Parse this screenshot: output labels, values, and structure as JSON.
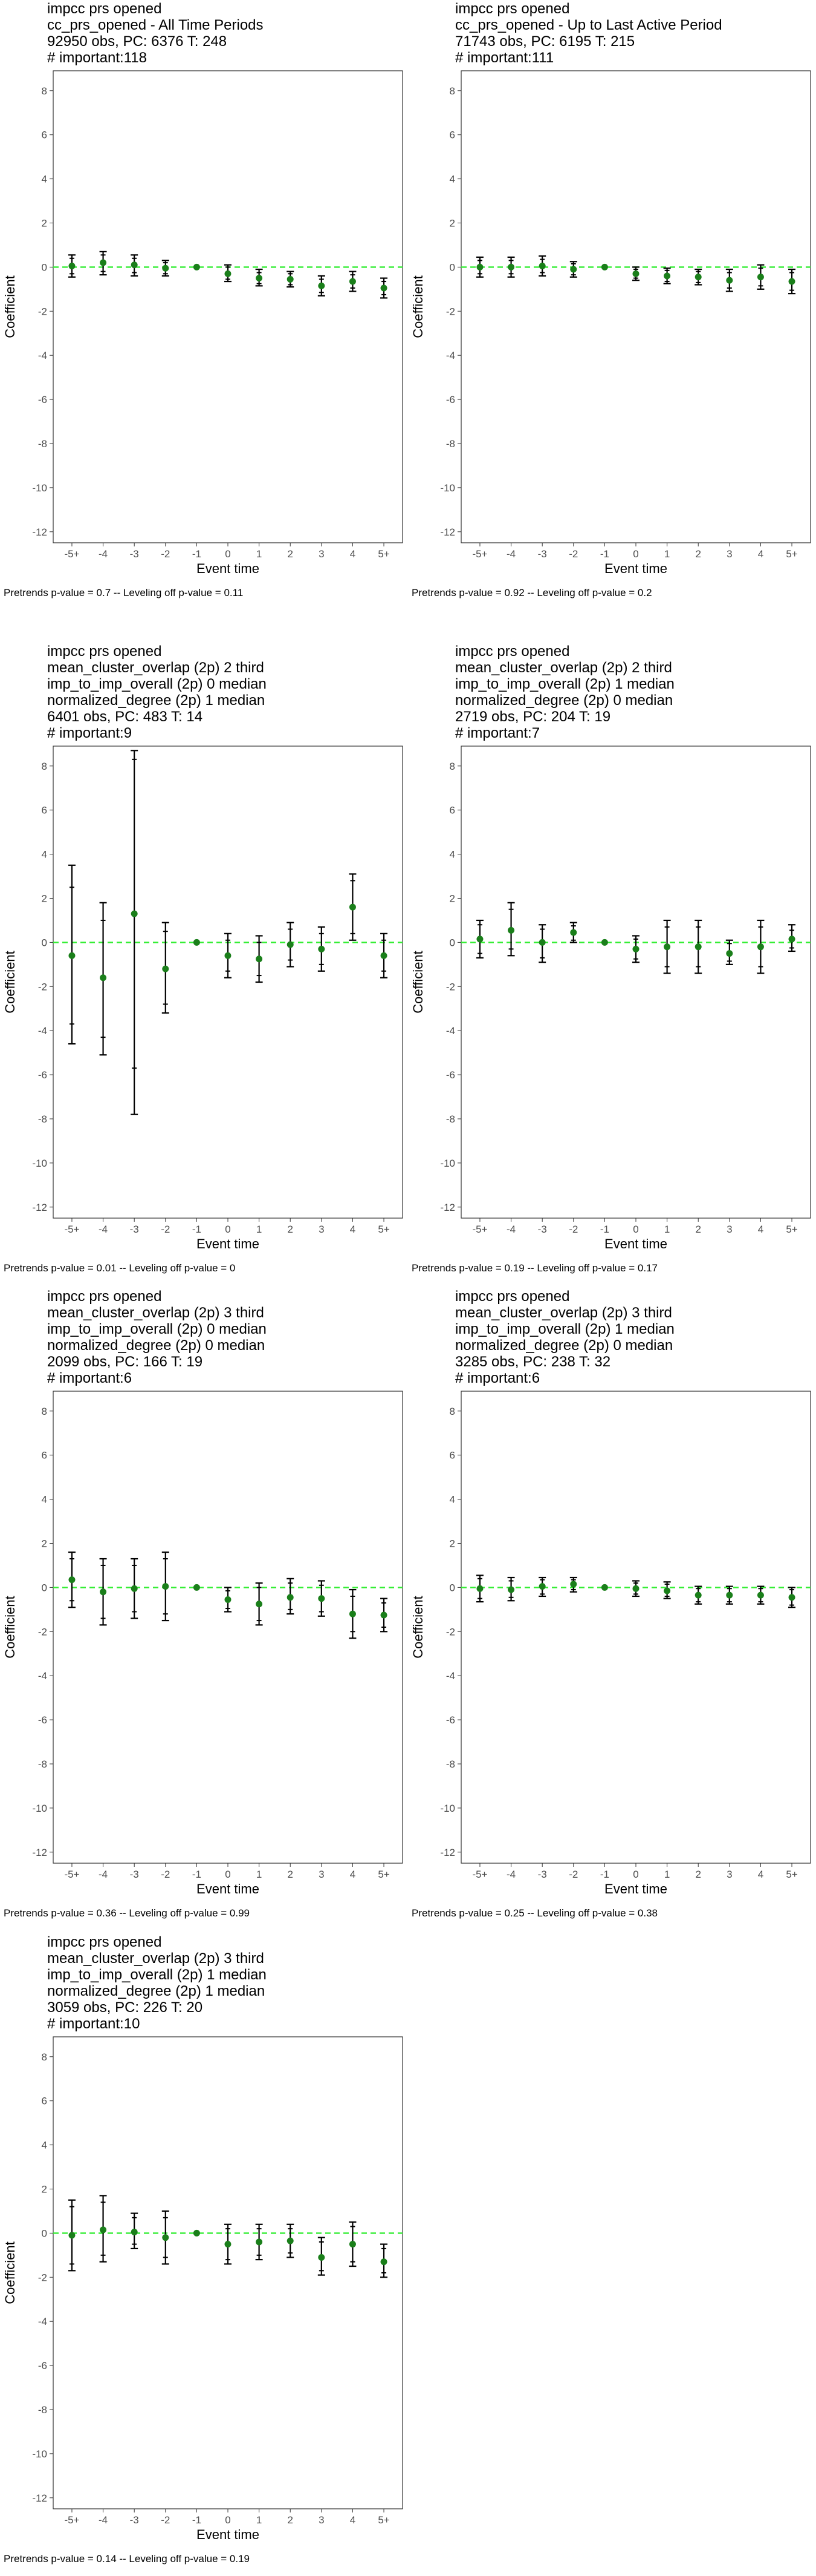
{
  "common": {
    "xlabel": "Event time",
    "ylabel": "Coefficient",
    "x_ticks": [
      "-5+",
      "-4",
      "-3",
      "-2",
      "-1",
      "0",
      "1",
      "2",
      "3",
      "4",
      "5+"
    ],
    "y_ticks": [
      8,
      6,
      4,
      2,
      0,
      -2,
      -4,
      -6,
      -8,
      -10,
      -12
    ],
    "ylim": [
      -12.5,
      8.9
    ],
    "colors": {
      "point": "#1a7f1a",
      "zero_line": "#33ee33",
      "error_bar": "#000000",
      "panel_border": "#333333"
    }
  },
  "chart_data": [
    {
      "type": "scatter",
      "title_lines": [
        "impcc prs opened",
        "cc_prs_opened - All Time Periods",
        "92950 obs, PC: 6376 T: 248",
        "# important:118"
      ],
      "footer": "Pretrends p-value = 0.7 -- Leveling off p-value = 0.11",
      "x": [
        "-5+",
        "-4",
        "-3",
        "-2",
        "-1",
        "0",
        "1",
        "2",
        "3",
        "4",
        "5+"
      ],
      "y": [
        0.05,
        0.2,
        0.1,
        -0.05,
        0.0,
        -0.3,
        -0.5,
        -0.55,
        -0.85,
        -0.65,
        -0.95
      ],
      "ci95": [
        [
          -0.45,
          0.55
        ],
        [
          -0.35,
          0.7
        ],
        [
          -0.4,
          0.55
        ],
        [
          -0.4,
          0.3
        ],
        [
          0,
          0
        ],
        [
          -0.65,
          0.1
        ],
        [
          -0.85,
          -0.1
        ],
        [
          -0.9,
          -0.2
        ],
        [
          -1.3,
          -0.4
        ],
        [
          -1.1,
          -0.2
        ],
        [
          -1.4,
          -0.5
        ]
      ],
      "ci90": [
        [
          -0.3,
          0.4
        ],
        [
          -0.2,
          0.55
        ],
        [
          -0.25,
          0.4
        ],
        [
          -0.3,
          0.2
        ],
        [
          0,
          0
        ],
        [
          -0.55,
          0.0
        ],
        [
          -0.75,
          -0.25
        ],
        [
          -0.8,
          -0.3
        ],
        [
          -1.15,
          -0.55
        ],
        [
          -0.95,
          -0.35
        ],
        [
          -1.25,
          -0.65
        ]
      ]
    },
    {
      "type": "scatter",
      "title_lines": [
        "impcc prs opened",
        "cc_prs_opened - Up to Last Active Period",
        "71743 obs, PC: 6195 T: 215",
        "# important:111"
      ],
      "footer": "Pretrends p-value = 0.92 -- Leveling off p-value = 0.2",
      "x": [
        "-5+",
        "-4",
        "-3",
        "-2",
        "-1",
        "0",
        "1",
        "2",
        "3",
        "4",
        "5+"
      ],
      "y": [
        0.0,
        0.0,
        0.05,
        -0.1,
        0.0,
        -0.3,
        -0.4,
        -0.45,
        -0.6,
        -0.45,
        -0.65
      ],
      "ci95": [
        [
          -0.45,
          0.45
        ],
        [
          -0.45,
          0.45
        ],
        [
          -0.4,
          0.5
        ],
        [
          -0.45,
          0.25
        ],
        [
          0,
          0
        ],
        [
          -0.6,
          0.0
        ],
        [
          -0.75,
          -0.05
        ],
        [
          -0.8,
          -0.1
        ],
        [
          -1.1,
          -0.1
        ],
        [
          -1.0,
          0.1
        ],
        [
          -1.2,
          -0.1
        ]
      ],
      "ci90": [
        [
          -0.3,
          0.3
        ],
        [
          -0.3,
          0.3
        ],
        [
          -0.25,
          0.35
        ],
        [
          -0.35,
          0.15
        ],
        [
          0,
          0
        ],
        [
          -0.5,
          -0.1
        ],
        [
          -0.65,
          -0.15
        ],
        [
          -0.7,
          -0.2
        ],
        [
          -0.95,
          -0.25
        ],
        [
          -0.85,
          -0.05
        ],
        [
          -1.05,
          -0.25
        ]
      ]
    },
    {
      "type": "scatter",
      "title_lines": [
        "impcc prs opened",
        "mean_cluster_overlap (2p) 2 third",
        "imp_to_imp_overall (2p) 0 median",
        "normalized_degree (2p) 1 median",
        "6401 obs, PC: 483 T: 14",
        "# important:9"
      ],
      "footer": "Pretrends p-value = 0.01 -- Leveling off p-value = 0",
      "x": [
        "-5+",
        "-4",
        "-3",
        "-2",
        "-1",
        "0",
        "1",
        "2",
        "3",
        "4",
        "5+"
      ],
      "y": [
        -0.6,
        -1.6,
        1.3,
        -1.2,
        0.0,
        -0.6,
        -0.75,
        -0.1,
        -0.3,
        1.6,
        -0.6
      ],
      "ci95": [
        [
          -4.6,
          3.5
        ],
        [
          -5.1,
          1.8
        ],
        [
          -7.8,
          8.7
        ],
        [
          -3.2,
          0.9
        ],
        [
          0,
          0
        ],
        [
          -1.6,
          0.4
        ],
        [
          -1.8,
          0.3
        ],
        [
          -1.1,
          0.9
        ],
        [
          -1.3,
          0.7
        ],
        [
          0.1,
          3.1
        ],
        [
          -1.6,
          0.4
        ]
      ],
      "ci90": [
        [
          -3.7,
          2.5
        ],
        [
          -4.3,
          1.0
        ],
        [
          -5.7,
          8.3
        ],
        [
          -2.8,
          0.5
        ],
        [
          0,
          0
        ],
        [
          -1.3,
          0.1
        ],
        [
          -1.5,
          0.0
        ],
        [
          -0.8,
          0.6
        ],
        [
          -1.0,
          0.4
        ],
        [
          0.4,
          2.8
        ],
        [
          -1.3,
          0.1
        ]
      ]
    },
    {
      "type": "scatter",
      "title_lines": [
        "impcc prs opened",
        "mean_cluster_overlap (2p) 2 third",
        "imp_to_imp_overall (2p) 1 median",
        "normalized_degree (2p) 0 median",
        "2719 obs, PC: 204 T: 19",
        "# important:7"
      ],
      "footer": "Pretrends p-value = 0.19 -- Leveling off p-value = 0.17",
      "x": [
        "-5+",
        "-4",
        "-3",
        "-2",
        "-1",
        "0",
        "1",
        "2",
        "3",
        "4",
        "5+"
      ],
      "y": [
        0.15,
        0.55,
        0.0,
        0.45,
        0.0,
        -0.3,
        -0.2,
        -0.2,
        -0.5,
        -0.2,
        0.15
      ],
      "ci95": [
        [
          -0.7,
          1.0
        ],
        [
          -0.6,
          1.8
        ],
        [
          -0.9,
          0.8
        ],
        [
          0.0,
          0.9
        ],
        [
          0,
          0
        ],
        [
          -0.9,
          0.3
        ],
        [
          -1.4,
          1.0
        ],
        [
          -1.4,
          1.0
        ],
        [
          -1.0,
          0.1
        ],
        [
          -1.4,
          1.0
        ],
        [
          -0.4,
          0.8
        ]
      ],
      "ci90": [
        [
          -0.5,
          0.8
        ],
        [
          -0.3,
          1.5
        ],
        [
          -0.7,
          0.6
        ],
        [
          0.1,
          0.75
        ],
        [
          0,
          0
        ],
        [
          -0.75,
          0.15
        ],
        [
          -1.1,
          0.7
        ],
        [
          -1.1,
          0.7
        ],
        [
          -0.85,
          -0.05
        ],
        [
          -1.1,
          0.7
        ],
        [
          -0.25,
          0.55
        ]
      ]
    },
    {
      "type": "scatter",
      "title_lines": [
        "impcc prs opened",
        "mean_cluster_overlap (2p) 3 third",
        "imp_to_imp_overall (2p) 0 median",
        "normalized_degree (2p) 0 median",
        "2099 obs, PC: 166 T: 19",
        "# important:6"
      ],
      "footer": "Pretrends p-value = 0.36 -- Leveling off p-value = 0.99",
      "x": [
        "-5+",
        "-4",
        "-3",
        "-2",
        "-1",
        "0",
        "1",
        "2",
        "3",
        "4",
        "5+"
      ],
      "y": [
        0.35,
        -0.2,
        -0.05,
        0.05,
        0.0,
        -0.55,
        -0.75,
        -0.45,
        -0.5,
        -1.2,
        -1.25
      ],
      "ci95": [
        [
          -0.9,
          1.6
        ],
        [
          -1.7,
          1.3
        ],
        [
          -1.4,
          1.3
        ],
        [
          -1.5,
          1.6
        ],
        [
          0,
          0
        ],
        [
          -1.1,
          0.0
        ],
        [
          -1.7,
          0.2
        ],
        [
          -1.2,
          0.4
        ],
        [
          -1.3,
          0.3
        ],
        [
          -2.3,
          -0.1
        ],
        [
          -2.0,
          -0.5
        ]
      ],
      "ci90": [
        [
          -0.6,
          1.3
        ],
        [
          -1.4,
          1.0
        ],
        [
          -1.1,
          1.0
        ],
        [
          -1.2,
          1.3
        ],
        [
          0,
          0
        ],
        [
          -0.95,
          -0.15
        ],
        [
          -1.5,
          0.0
        ],
        [
          -1.0,
          0.2
        ],
        [
          -1.1,
          0.1
        ],
        [
          -2.0,
          -0.4
        ],
        [
          -1.8,
          -0.7
        ]
      ]
    },
    {
      "type": "scatter",
      "title_lines": [
        "impcc prs opened",
        "mean_cluster_overlap (2p) 3 third",
        "imp_to_imp_overall (2p) 1 median",
        "normalized_degree (2p) 0 median",
        "3285 obs, PC: 238 T: 32",
        "# important:6"
      ],
      "footer": "Pretrends p-value = 0.25 -- Leveling off p-value = 0.38",
      "x": [
        "-5+",
        "-4",
        "-3",
        "-2",
        "-1",
        "0",
        "1",
        "2",
        "3",
        "4",
        "5+"
      ],
      "y": [
        -0.05,
        -0.1,
        0.05,
        0.15,
        0.0,
        -0.05,
        -0.15,
        -0.35,
        -0.35,
        -0.35,
        -0.45
      ],
      "ci95": [
        [
          -0.65,
          0.55
        ],
        [
          -0.6,
          0.45
        ],
        [
          -0.4,
          0.45
        ],
        [
          -0.2,
          0.45
        ],
        [
          0,
          0
        ],
        [
          -0.4,
          0.3
        ],
        [
          -0.5,
          0.25
        ],
        [
          -0.75,
          0.05
        ],
        [
          -0.75,
          0.05
        ],
        [
          -0.75,
          0.05
        ],
        [
          -0.9,
          0.0
        ]
      ],
      "ci90": [
        [
          -0.5,
          0.4
        ],
        [
          -0.45,
          0.3
        ],
        [
          -0.3,
          0.35
        ],
        [
          -0.1,
          0.35
        ],
        [
          0,
          0
        ],
        [
          -0.3,
          0.2
        ],
        [
          -0.4,
          0.15
        ],
        [
          -0.65,
          -0.05
        ],
        [
          -0.65,
          -0.05
        ],
        [
          -0.65,
          -0.05
        ],
        [
          -0.8,
          -0.1
        ]
      ]
    },
    {
      "type": "scatter",
      "title_lines": [
        "impcc prs opened",
        "mean_cluster_overlap (2p) 3 third",
        "imp_to_imp_overall (2p) 1 median",
        "normalized_degree (2p) 1 median",
        "3059 obs, PC: 226 T: 20",
        "# important:10"
      ],
      "footer": "Pretrends p-value = 0.14 -- Leveling off p-value = 0.19",
      "x": [
        "-5+",
        "-4",
        "-3",
        "-2",
        "-1",
        "0",
        "1",
        "2",
        "3",
        "4",
        "5+"
      ],
      "y": [
        -0.1,
        0.15,
        0.05,
        -0.2,
        0.0,
        -0.5,
        -0.4,
        -0.35,
        -1.1,
        -0.5,
        -1.3
      ],
      "ci95": [
        [
          -1.7,
          1.5
        ],
        [
          -1.3,
          1.7
        ],
        [
          -0.7,
          0.9
        ],
        [
          -1.4,
          1.0
        ],
        [
          0,
          0
        ],
        [
          -1.4,
          0.4
        ],
        [
          -1.2,
          0.4
        ],
        [
          -1.1,
          0.4
        ],
        [
          -1.9,
          -0.2
        ],
        [
          -1.5,
          0.5
        ],
        [
          -2.0,
          -0.5
        ]
      ],
      "ci90": [
        [
          -1.4,
          1.2
        ],
        [
          -1.0,
          1.4
        ],
        [
          -0.5,
          0.7
        ],
        [
          -1.1,
          0.7
        ],
        [
          0,
          0
        ],
        [
          -1.2,
          0.2
        ],
        [
          -1.0,
          0.2
        ],
        [
          -0.9,
          0.2
        ],
        [
          -1.7,
          -0.4
        ],
        [
          -1.3,
          0.3
        ],
        [
          -1.8,
          -0.7
        ]
      ]
    }
  ]
}
